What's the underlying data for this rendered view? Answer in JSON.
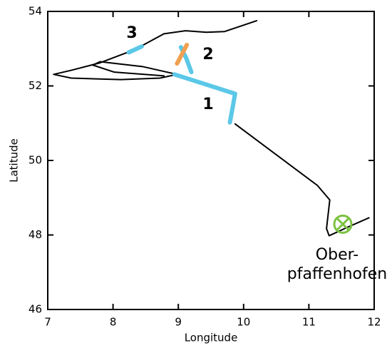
{
  "chart_data": {
    "type": "line",
    "xlabel": "Longitude",
    "ylabel": "Latitude",
    "xlim": [
      7,
      12
    ],
    "xticks": [
      7,
      8,
      9,
      10,
      11,
      12
    ],
    "ylim": [
      46,
      54
    ],
    "yticks": [
      46,
      48,
      50,
      52,
      54
    ],
    "series": [
      {
        "color": "#000000",
        "width": 2,
        "x": [
          10.2,
          9.71,
          9.43,
          9.11,
          8.78,
          8.34,
          7.8,
          7.36,
          7.09,
          7.36,
          8.12,
          8.72,
          8.98
        ],
        "y": [
          53.75,
          53.46,
          53.44,
          53.48,
          53.4,
          52.98,
          52.62,
          52.42,
          52.31,
          52.21,
          52.17,
          52.21,
          52.31
        ]
      },
      {
        "color": "#000000",
        "width": 2,
        "x": [
          8.98,
          8.45,
          7.8,
          7.69,
          8.02,
          8.78
        ],
        "y": [
          52.31,
          52.52,
          52.65,
          52.56,
          52.37,
          52.27
        ]
      },
      {
        "color": "#000000",
        "width": 2,
        "x": [
          9.87,
          11.13,
          11.32,
          11.27,
          11.31,
          11.62,
          11.92
        ],
        "y": [
          50.98,
          49.33,
          48.94,
          48.17,
          47.98,
          48.23,
          48.46
        ]
      },
      {
        "color": "#5bc8e8",
        "width": 6,
        "x": [
          8.94,
          9.87,
          9.79
        ],
        "y": [
          52.31,
          51.79,
          51.02
        ]
      },
      {
        "color": "#5bc8e8",
        "width": 6,
        "x": [
          9.2,
          9.12,
          9.04
        ],
        "y": [
          52.37,
          52.75,
          53.04
        ]
      },
      {
        "color": "#5bc8e8",
        "width": 6,
        "x": [
          8.24,
          8.44
        ],
        "y": [
          52.9,
          53.06
        ]
      },
      {
        "color": "#f0a050",
        "width": 6,
        "x": [
          8.98,
          9.13
        ],
        "y": [
          52.6,
          53.1
        ]
      }
    ],
    "markers": [
      {
        "x": 11.52,
        "y": 48.29,
        "color": "#7cc242"
      }
    ],
    "annotations": [
      "1",
      "2",
      "3",
      "Ober-",
      "pfaffenhofen"
    ]
  }
}
